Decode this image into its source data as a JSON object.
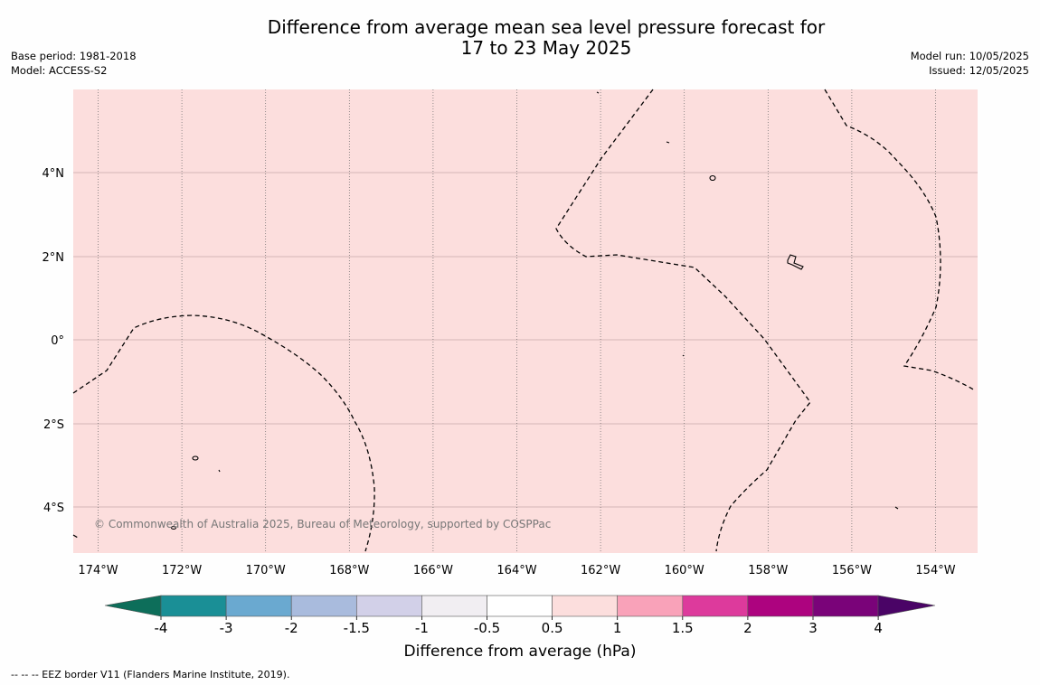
{
  "title_line1": "Difference from average mean sea level pressure forecast for",
  "title_line2": "17 to 23 May 2025",
  "base_period": "Base period: 1981-2018",
  "model": "Model: ACCESS-S2",
  "model_run": "Model run: 10/05/2025",
  "issued": "Issued: 12/05/2025",
  "copyright": "© Commonwealth of Australia 2025, Bureau of Meteorology, supported by COSPPac",
  "footnote": "--  --  -- EEZ border V11 (Flanders Marine Institute, 2019).",
  "colorbar_label": "Difference from average (hPa)",
  "colors": {
    "map_fill": "#fcdedd",
    "gridline": "#c9a9a8",
    "meridian": "#666666",
    "eez": "#000000"
  },
  "map": {
    "lon_labels": [
      "174°W",
      "172°W",
      "170°W",
      "168°W",
      "166°W",
      "164°W",
      "162°W",
      "160°W",
      "158°W",
      "156°W",
      "154°W"
    ],
    "lat_labels": [
      "4°N",
      "2°N",
      "0°",
      "2°S",
      "4°S"
    ]
  },
  "colorbar": {
    "extend_low_color": "#0d6e5a",
    "extend_high_color": "#4a0466",
    "bins": [
      {
        "from": "-4",
        "to": "-3",
        "color": "#1a8f96"
      },
      {
        "from": "-3",
        "to": "-2",
        "color": "#6aa9d0"
      },
      {
        "from": "-2",
        "to": "-1.5",
        "color": "#a9bbdd"
      },
      {
        "from": "-1.5",
        "to": "-1",
        "color": "#d2d0e8"
      },
      {
        "from": "-1",
        "to": "-0.5",
        "color": "#f1eef2"
      },
      {
        "from": "-0.5",
        "to": "0.5",
        "color": "#ffffff"
      },
      {
        "from": "0.5",
        "to": "1",
        "color": "#fcdedd"
      },
      {
        "from": "1",
        "to": "1.5",
        "color": "#f9a2b9"
      },
      {
        "from": "1.5",
        "to": "2",
        "color": "#dd3a9c"
      },
      {
        "from": "2",
        "to": "3",
        "color": "#ad037f"
      },
      {
        "from": "3",
        "to": "4",
        "color": "#7a0379"
      }
    ],
    "tick_labels": [
      "-4",
      "-3",
      "-2",
      "-1.5",
      "-1",
      "-0.5",
      "0.5",
      "1",
      "1.5",
      "2",
      "3",
      "4"
    ]
  }
}
